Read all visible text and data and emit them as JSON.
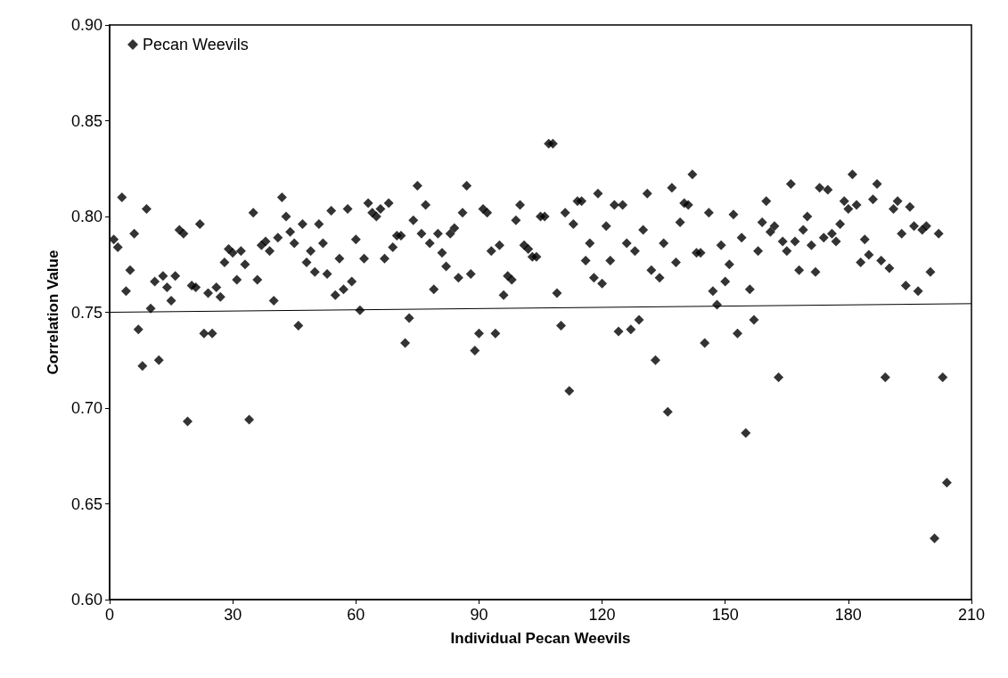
{
  "chart_data": {
    "type": "scatter",
    "xlabel": "Individual Pecan Weevils",
    "ylabel": "Correlation Value",
    "xlim": [
      0,
      210
    ],
    "xticks": [
      0,
      30,
      60,
      90,
      120,
      150,
      180,
      210
    ],
    "ylim": [
      0.6,
      0.9
    ],
    "yticks": [
      {
        "value": 0.6,
        "label": "0.60"
      },
      {
        "value": 0.65,
        "label": "0.65"
      },
      {
        "value": 0.7,
        "label": "0.70"
      },
      {
        "value": 0.75,
        "label": "0.75"
      },
      {
        "value": 0.8,
        "label": "0.80"
      },
      {
        "value": 0.85,
        "label": "0.85"
      },
      {
        "value": 0.9,
        "label": "0.90"
      }
    ],
    "grid": false,
    "legend": "top left",
    "marker": "diamond",
    "series": [
      {
        "name": "Pecan Weevils",
        "color": "#000000",
        "x": [
          1,
          2,
          3,
          4,
          5,
          6,
          7,
          8,
          9,
          10,
          11,
          12,
          13,
          14,
          15,
          16,
          17,
          18,
          19,
          20,
          21,
          22,
          23,
          24,
          25,
          26,
          27,
          28,
          29,
          30,
          31,
          32,
          33,
          34,
          35,
          36,
          37,
          38,
          39,
          40,
          41,
          42,
          43,
          44,
          45,
          46,
          47,
          48,
          49,
          50,
          51,
          52,
          53,
          54,
          55,
          56,
          57,
          58,
          59,
          60,
          61,
          62,
          63,
          64,
          65,
          66,
          67,
          68,
          69,
          70,
          71,
          72,
          73,
          74,
          75,
          76,
          77,
          78,
          79,
          80,
          81,
          82,
          83,
          84,
          85,
          86,
          87,
          88,
          89,
          90,
          91,
          92,
          93,
          94,
          95,
          96,
          97,
          98,
          99,
          100,
          101,
          102,
          103,
          104,
          105,
          106,
          107,
          108,
          109,
          110,
          111,
          112,
          113,
          114,
          115,
          116,
          117,
          118,
          119,
          120,
          121,
          122,
          123,
          124,
          125,
          126,
          127,
          128,
          129,
          130,
          131,
          132,
          133,
          134,
          135,
          136,
          137,
          138,
          139,
          140,
          141,
          142,
          143,
          144,
          145,
          146,
          147,
          148,
          149,
          150,
          151,
          152,
          153,
          154,
          155,
          156,
          157,
          158,
          159,
          160,
          161,
          162,
          163,
          164,
          165,
          166,
          167,
          168,
          169,
          170,
          171,
          172,
          173,
          174,
          175,
          176,
          177,
          178,
          179,
          180,
          181,
          182,
          183,
          184,
          185,
          186,
          187,
          188,
          189,
          190,
          191,
          192,
          193,
          194,
          195,
          196,
          197,
          198,
          199,
          200,
          201,
          202,
          203,
          204
        ],
        "values": [
          0.788,
          0.784,
          0.81,
          0.761,
          0.772,
          0.791,
          0.741,
          0.722,
          0.804,
          0.752,
          0.766,
          0.725,
          0.769,
          0.763,
          0.756,
          0.769,
          0.793,
          0.791,
          0.693,
          0.764,
          0.763,
          0.796,
          0.739,
          0.76,
          0.739,
          0.763,
          0.758,
          0.776,
          0.783,
          0.781,
          0.767,
          0.782,
          0.775,
          0.694,
          0.802,
          0.767,
          0.785,
          0.787,
          0.782,
          0.756,
          0.789,
          0.81,
          0.8,
          0.792,
          0.786,
          0.743,
          0.796,
          0.776,
          0.782,
          0.771,
          0.796,
          0.786,
          0.77,
          0.803,
          0.759,
          0.778,
          0.762,
          0.804,
          0.766,
          0.788,
          0.751,
          0.778,
          0.807,
          0.802,
          0.8,
          0.804,
          0.778,
          0.807,
          0.784,
          0.79,
          0.79,
          0.734,
          0.747,
          0.798,
          0.816,
          0.791,
          0.806,
          0.786,
          0.762,
          0.791,
          0.781,
          0.774,
          0.791,
          0.794,
          0.768,
          0.802,
          0.816,
          0.77,
          0.73,
          0.739,
          0.804,
          0.802,
          0.782,
          0.739,
          0.785,
          0.759,
          0.769,
          0.767,
          0.798,
          0.806,
          0.785,
          0.783,
          0.779,
          0.779,
          0.8,
          0.8,
          0.838,
          0.838,
          0.76,
          0.743,
          0.802,
          0.709,
          0.796,
          0.808,
          0.808,
          0.777,
          0.786,
          0.768,
          0.812,
          0.765,
          0.795,
          0.777,
          0.806,
          0.74,
          0.806,
          0.786,
          0.741,
          0.782,
          0.746,
          0.793,
          0.812,
          0.772,
          0.725,
          0.768,
          0.786,
          0.698,
          0.815,
          0.776,
          0.797,
          0.807,
          0.806,
          0.822,
          0.781,
          0.781,
          0.734,
          0.802,
          0.761,
          0.754,
          0.785,
          0.766,
          0.775,
          0.801,
          0.739,
          0.789,
          0.687,
          0.762,
          0.746,
          0.782,
          0.797,
          0.808,
          0.792,
          0.795,
          0.716,
          0.787,
          0.782,
          0.817,
          0.787,
          0.772,
          0.793,
          0.8,
          0.785,
          0.771,
          0.815,
          0.789,
          0.814,
          0.791,
          0.787,
          0.796,
          0.808,
          0.804,
          0.822,
          0.806,
          0.776,
          0.788,
          0.78,
          0.809,
          0.817,
          0.777,
          0.716,
          0.773,
          0.804,
          0.808,
          0.791,
          0.764,
          0.805,
          0.795,
          0.761,
          0.793,
          0.795,
          0.771,
          0.632,
          0.791,
          0.716,
          0.661
        ]
      },
      {
        "type": "line",
        "color": "#000000",
        "marker": "none",
        "x": [
          0,
          210
        ],
        "values": [
          0.75,
          0.7545
        ]
      }
    ]
  }
}
